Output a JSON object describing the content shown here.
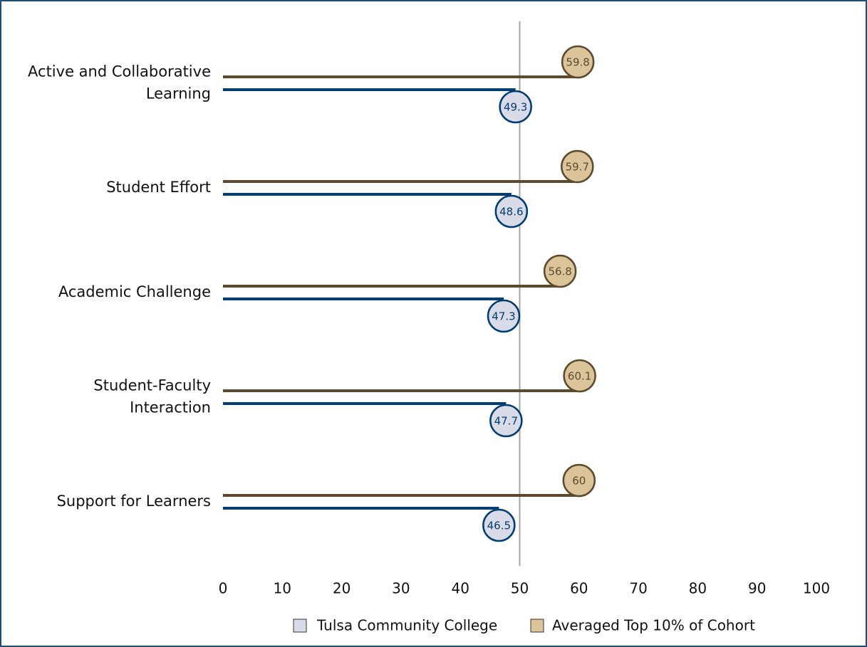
{
  "chart_data": {
    "type": "lollipop",
    "categories": [
      [
        "Active and Collaborative",
        "Learning"
      ],
      [
        "Student Effort"
      ],
      [
        "Academic Challenge"
      ],
      [
        "Student-Faculty",
        "Interaction"
      ],
      [
        "Support for Learners"
      ]
    ],
    "series": [
      {
        "name": "Tulsa Community College",
        "color": "#003d73",
        "marker_fill": "#d9dce8",
        "values": [
          49.3,
          48.6,
          47.3,
          47.7,
          46.5
        ]
      },
      {
        "name": "Averaged Top 10% of Cohort",
        "color": "#5b4a2e",
        "marker_fill": "#dcc49a",
        "values": [
          59.8,
          59.7,
          56.8,
          60.1,
          60.0
        ]
      }
    ],
    "xlim": [
      0,
      100
    ],
    "xticks": [
      0,
      10,
      20,
      30,
      40,
      50,
      60,
      70,
      80,
      90,
      100
    ],
    "reference_line": 50
  }
}
